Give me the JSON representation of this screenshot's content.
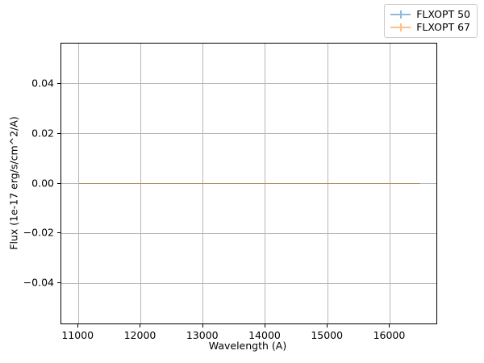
{
  "chart_data": {
    "type": "line",
    "subtype": "errorbar",
    "title": "",
    "xlabel": "Wavelength (A)",
    "ylabel": "Flux (1e-17 erg/s/cm^2/A)",
    "xlim": [
      10725,
      16745
    ],
    "ylim": [
      -0.056,
      0.056
    ],
    "x_ticks": [
      11000,
      12000,
      13000,
      14000,
      15000,
      16000
    ],
    "x_tick_labels": [
      "11000",
      "12000",
      "13000",
      "14000",
      "15000",
      "16000"
    ],
    "y_ticks": [
      0.04,
      0.02,
      0,
      -0.02,
      -0.04
    ],
    "y_tick_labels": [
      "0.04",
      "0.02",
      "0.00",
      "−0.02",
      "−0.04"
    ],
    "grid": true,
    "grid_color": "#b8b8b8",
    "axes_edge_color": "#000000",
    "series": [
      {
        "name": "FLXOPT 50",
        "base_color": "#1f77b4",
        "alpha": 0.5,
        "x_start": 11005,
        "x_end": 16480,
        "y_constant": 0.0
      },
      {
        "name": "FLXOPT 67",
        "base_color": "#ff7f0e",
        "alpha": 0.5,
        "x_start": 11005,
        "x_end": 16480,
        "y_constant": 0.0
      }
    ],
    "legend": {
      "position": "upper right",
      "entries": [
        {
          "label": "FLXOPT 50",
          "marker_color": "#8fbbd9"
        },
        {
          "label": "FLXOPT 67",
          "marker_color": "#ffbf86"
        }
      ]
    }
  }
}
